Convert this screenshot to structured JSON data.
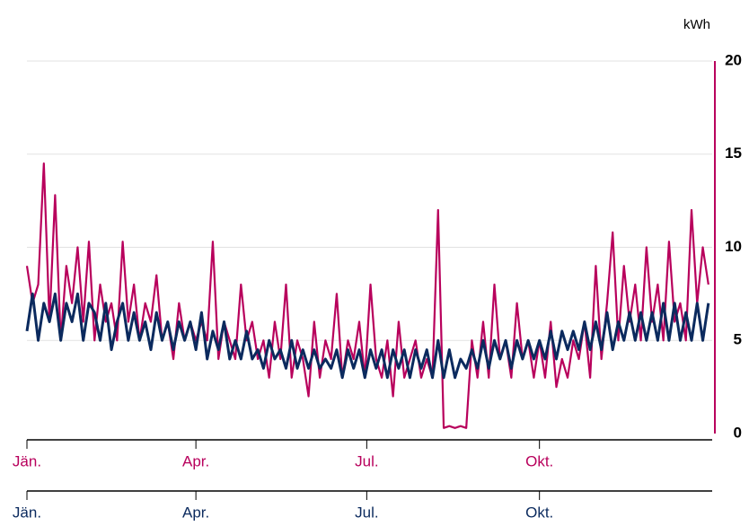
{
  "chart_data": {
    "type": "line",
    "y_label": "kWh",
    "xlim": [
      0,
      365
    ],
    "xticks": [
      {
        "value": 0,
        "label": "Jän."
      },
      {
        "value": 90,
        "label": "Apr."
      },
      {
        "value": 181,
        "label": "Jul."
      },
      {
        "value": 273,
        "label": "Okt."
      }
    ],
    "x2ticks": [
      {
        "value": 0,
        "label": "Jän."
      },
      {
        "value": 90,
        "label": "Apr."
      },
      {
        "value": 181,
        "label": "Jul."
      },
      {
        "value": 273,
        "label": "Okt."
      }
    ],
    "ylim": [
      0,
      20
    ],
    "yticks": [
      0,
      5,
      10,
      15,
      20
    ],
    "grid": true,
    "x": [
      0,
      3,
      6,
      9,
      12,
      15,
      18,
      21,
      24,
      27,
      30,
      33,
      36,
      39,
      42,
      45,
      48,
      51,
      54,
      57,
      60,
      63,
      66,
      69,
      72,
      75,
      78,
      81,
      84,
      87,
      90,
      93,
      96,
      99,
      102,
      105,
      108,
      111,
      114,
      117,
      120,
      123,
      126,
      129,
      132,
      135,
      138,
      141,
      144,
      147,
      150,
      153,
      156,
      159,
      162,
      165,
      168,
      171,
      174,
      177,
      180,
      183,
      186,
      189,
      192,
      195,
      198,
      201,
      204,
      207,
      210,
      213,
      216,
      219,
      222,
      225,
      228,
      231,
      234,
      237,
      240,
      243,
      246,
      249,
      252,
      255,
      258,
      261,
      264,
      267,
      270,
      273,
      276,
      279,
      282,
      285,
      288,
      291,
      294,
      297,
      300,
      303,
      306,
      309,
      312,
      315,
      318,
      321,
      324,
      327,
      330,
      333,
      336,
      339,
      342,
      345,
      348,
      351,
      354,
      357,
      360,
      363
    ],
    "series": [
      {
        "color": "#b8005c",
        "values": [
          9,
          7,
          8,
          14.5,
          6,
          12.8,
          5,
          9,
          7,
          10,
          6,
          10.3,
          5,
          8,
          6,
          7,
          5,
          10.3,
          6,
          8,
          5,
          7,
          6,
          8.5,
          5,
          6,
          4,
          7,
          5,
          6,
          5,
          6,
          5,
          10.3,
          4,
          6,
          5,
          4,
          8,
          5,
          6,
          4,
          5,
          3,
          6,
          4,
          8,
          3,
          5,
          4,
          2,
          6,
          3,
          5,
          4,
          7.5,
          3,
          5,
          4,
          6,
          3,
          8,
          4,
          3,
          5,
          2,
          6,
          3,
          4,
          5,
          3,
          4,
          3,
          12,
          0.3,
          0.4,
          0.3,
          0.4,
          0.3,
          5,
          3,
          6,
          3,
          8,
          4,
          5,
          3,
          7,
          4,
          5,
          3,
          5,
          3,
          6,
          2.5,
          4,
          3,
          5,
          4,
          6,
          3,
          9,
          4,
          7,
          10.8,
          5,
          9,
          6,
          8,
          5,
          10,
          6,
          8,
          5,
          10.3,
          6,
          7,
          5,
          12,
          7,
          10,
          8
        ]
      },
      {
        "color": "#0b2a5e",
        "values": [
          5.5,
          7.5,
          5,
          7,
          6,
          7.5,
          5,
          7,
          6,
          7.5,
          5,
          7,
          6.5,
          5,
          7,
          4.5,
          6,
          7,
          5,
          6.5,
          5,
          6,
          4.5,
          6.5,
          5,
          6,
          4.5,
          6,
          5,
          6,
          4.5,
          6.5,
          4,
          5.5,
          4.5,
          6,
          4,
          5,
          4,
          5.5,
          4,
          4.5,
          3.5,
          5,
          4,
          4.5,
          3.5,
          5,
          3.5,
          4.5,
          3.5,
          4.5,
          3.5,
          4,
          3.5,
          4.5,
          3,
          4.5,
          3.5,
          4.5,
          3,
          4.5,
          3.5,
          4.5,
          3,
          4.5,
          3.5,
          4.5,
          3,
          4.5,
          3.5,
          4.5,
          3,
          5,
          3,
          4.5,
          3,
          4,
          3.5,
          4.5,
          3.5,
          5,
          3.5,
          5,
          4,
          5,
          3.5,
          5,
          4,
          5,
          4,
          5,
          4,
          5.5,
          4,
          5.5,
          4.5,
          5.5,
          4.5,
          6,
          4.5,
          6,
          4.5,
          6.5,
          4.5,
          6,
          5,
          6.5,
          5,
          6.5,
          5,
          6.5,
          5,
          7,
          5,
          7,
          5,
          6.5,
          5,
          7,
          5,
          7
        ]
      }
    ]
  }
}
